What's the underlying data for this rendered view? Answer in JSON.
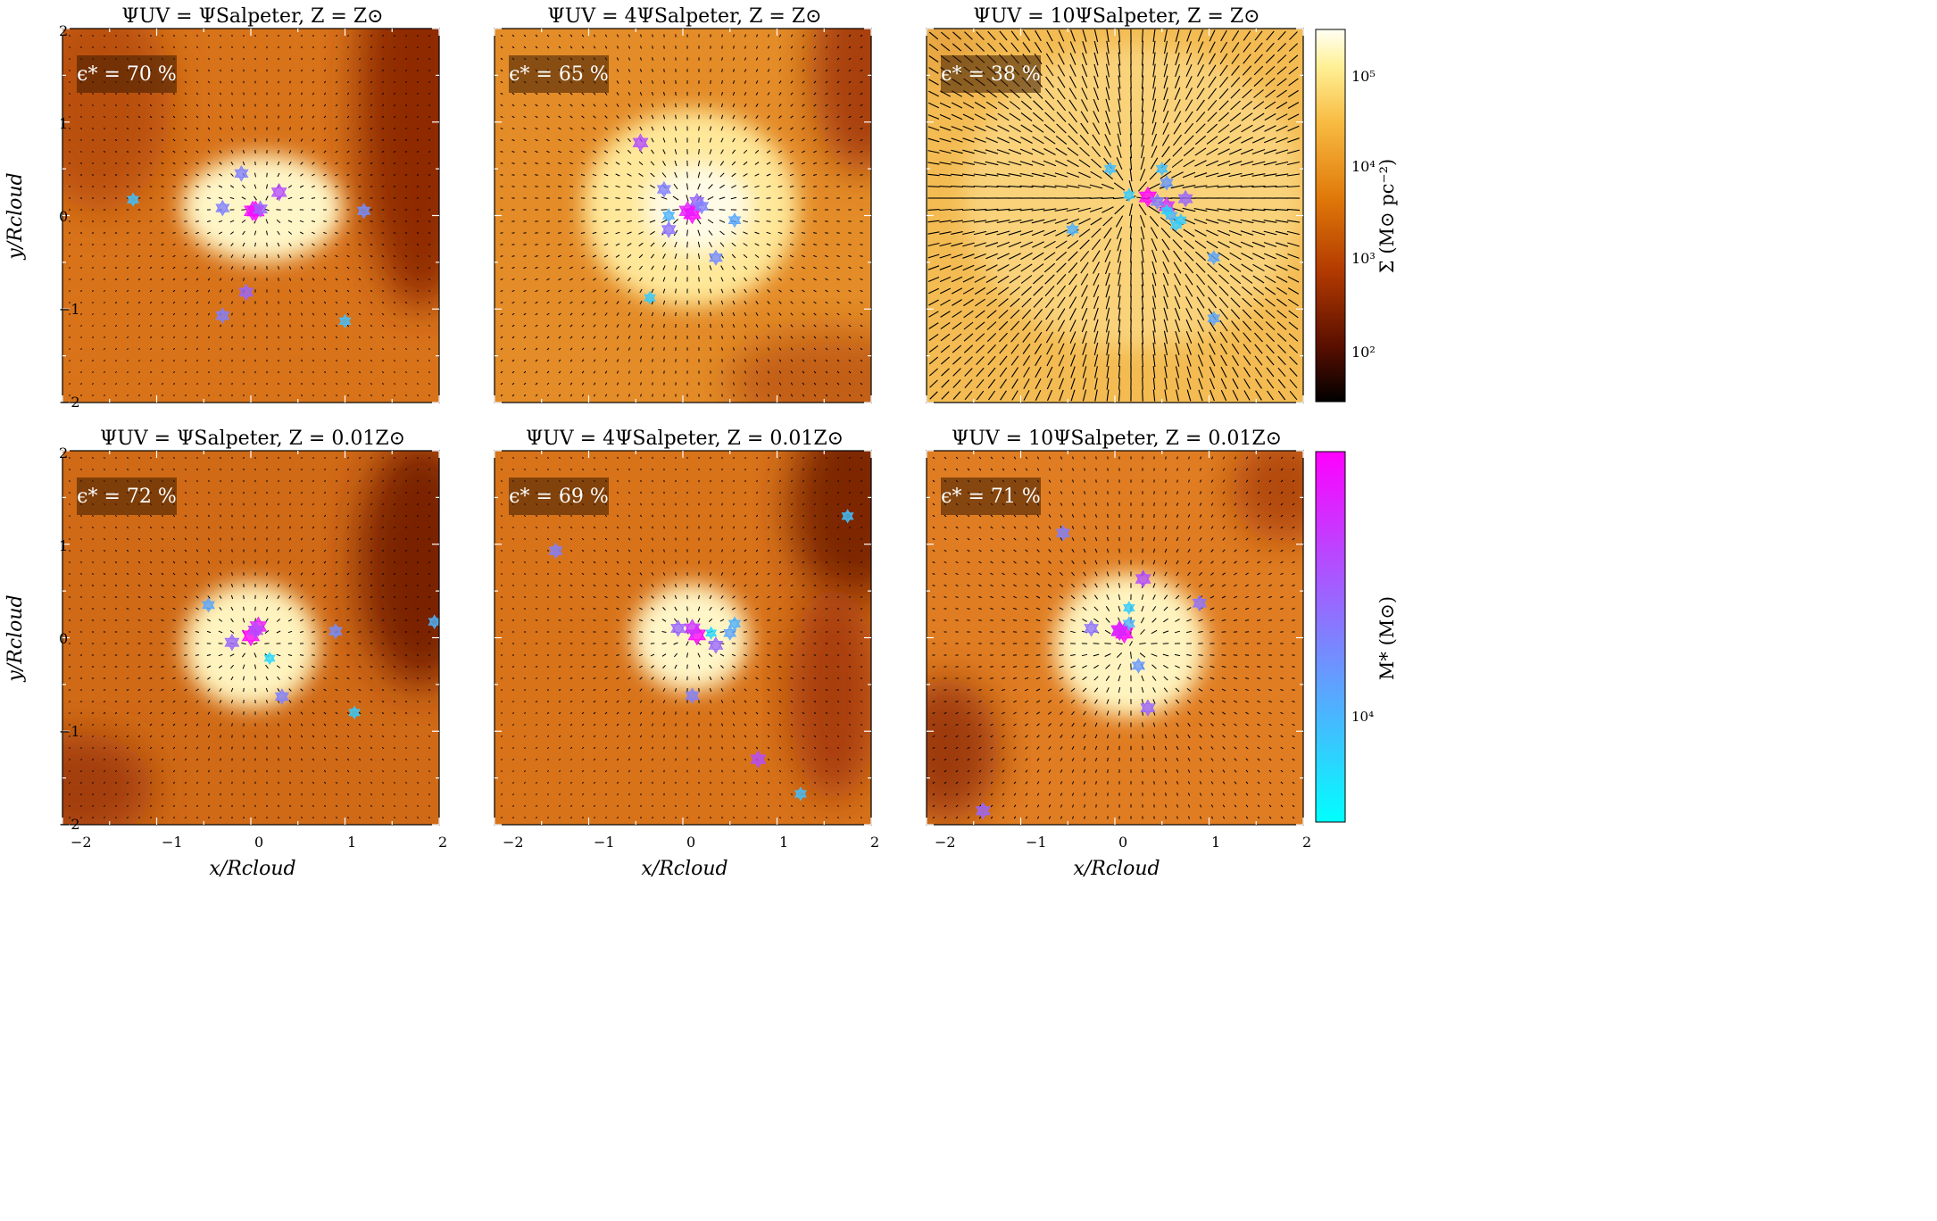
{
  "figure": {
    "panels": [
      {
        "title": "ΨUV = ΨSalpeter, Z = Z⊙",
        "efficiency": "ϵ* = 70 %"
      },
      {
        "title": "ΨUV = 4ΨSalpeter, Z = Z⊙",
        "efficiency": "ϵ* = 65 %"
      },
      {
        "title": "ΨUV = 10ΨSalpeter, Z = Z⊙",
        "efficiency": "ϵ* = 38 %"
      },
      {
        "title": "ΨUV = ΨSalpeter, Z = 0.01Z⊙",
        "efficiency": "ϵ* = 72 %"
      },
      {
        "title": "ΨUV = 4ΨSalpeter, Z = 0.01Z⊙",
        "efficiency": "ϵ* = 69 %"
      },
      {
        "title": "ΨUV = 10ΨSalpeter, Z = 0.01Z⊙",
        "efficiency": "ϵ* = 71 %"
      }
    ],
    "xlabel": "x/Rcloud",
    "ylabel": "y/Rcloud",
    "xticks": [
      "−2",
      "−1",
      "0",
      "1",
      "2"
    ],
    "yticks": [
      "2",
      "1",
      "0",
      "−1",
      "−2"
    ],
    "colorbar_density": {
      "label": "Σ (M⊙ pc⁻²)",
      "ticks": [
        "10⁵",
        "10⁴",
        "10³",
        "10²"
      ],
      "scale": "log"
    },
    "colorbar_mass": {
      "label": "M* (M⊙)",
      "ticks": [
        "10⁴"
      ],
      "scale": "log"
    },
    "colors": {
      "gas_low": "#000000",
      "gas_mid": "#e07a0a",
      "gas_high": "#fffff4",
      "star_low": "#00ffff",
      "star_high": "#ff00ff"
    }
  },
  "chart_data": [
    {
      "type": "scatter",
      "panel": 1,
      "title": "ΨUV = ΨSalpeter, Z = Z⊙",
      "efficiency_percent": 70,
      "xlim": [
        -2,
        2
      ],
      "ylim": [
        -2,
        2
      ],
      "x": [
        0.05,
        0.02,
        0.1,
        0.3,
        -0.1,
        -0.3,
        -1.25,
        1.2,
        -0.05,
        -0.3,
        1.0
      ],
      "y": [
        0.05,
        0.05,
        0.07,
        0.25,
        0.45,
        0.08,
        0.17,
        0.05,
        -0.82,
        -1.07,
        -1.13
      ],
      "mass_norm": [
        1.0,
        0.95,
        0.6,
        0.7,
        0.5,
        0.5,
        0.25,
        0.45,
        0.6,
        0.5,
        0.25
      ]
    },
    {
      "type": "scatter",
      "panel": 2,
      "title": "ΨUV = 4ΨSalpeter, Z = Z⊙",
      "efficiency_percent": 65,
      "xlim": [
        -2,
        2
      ],
      "ylim": [
        -2,
        2
      ],
      "x": [
        0.1,
        0.05,
        0.15,
        0.2,
        -0.15,
        -0.15,
        -0.45,
        0.55,
        0.35,
        -0.35,
        -0.2
      ],
      "y": [
        0.02,
        0.05,
        0.15,
        0.1,
        0.0,
        -0.15,
        0.78,
        -0.05,
        -0.45,
        -0.88,
        0.28
      ],
      "mass_norm": [
        1.0,
        0.9,
        0.6,
        0.5,
        0.3,
        0.55,
        0.7,
        0.35,
        0.45,
        0.2,
        0.5
      ]
    },
    {
      "type": "scatter",
      "panel": 3,
      "title": "ΨUV = 10ΨSalpeter, Z = Z⊙",
      "efficiency_percent": 38,
      "xlim": [
        -2,
        2
      ],
      "ylim": [
        -2,
        2
      ],
      "x": [
        0.35,
        0.55,
        0.6,
        0.5,
        0.55,
        0.15,
        -0.05,
        -0.45,
        0.65,
        0.75,
        1.05,
        1.05,
        0.55,
        0.45,
        0.7
      ],
      "y": [
        0.2,
        0.1,
        0.0,
        0.5,
        0.35,
        0.22,
        0.5,
        -0.15,
        -0.1,
        0.18,
        -0.45,
        -1.1,
        0.05,
        0.15,
        -0.05
      ],
      "mass_norm": [
        1.0,
        0.8,
        0.3,
        0.25,
        0.4,
        0.2,
        0.25,
        0.3,
        0.2,
        0.6,
        0.35,
        0.35,
        0.15,
        0.5,
        0.2
      ]
    },
    {
      "type": "scatter",
      "panel": 4,
      "title": "ΨUV = ΨSalpeter, Z = 0.01Z⊙",
      "efficiency_percent": 72,
      "xlim": [
        -2,
        2
      ],
      "ylim": [
        -2,
        2
      ],
      "x": [
        0.0,
        0.08,
        0.05,
        -0.2,
        -0.45,
        0.2,
        0.9,
        1.1,
        0.33,
        1.95
      ],
      "y": [
        0.02,
        0.12,
        0.08,
        -0.05,
        0.35,
        -0.22,
        0.07,
        -0.8,
        -0.63,
        0.17
      ],
      "mass_norm": [
        1.0,
        0.9,
        0.7,
        0.6,
        0.35,
        0.15,
        0.45,
        0.2,
        0.5,
        0.3
      ]
    },
    {
      "type": "scatter",
      "panel": 5,
      "title": "ΨUV = 4ΨSalpeter, Z = 0.01Z⊙",
      "efficiency_percent": 69,
      "xlim": [
        -2,
        2
      ],
      "ylim": [
        -2,
        2
      ],
      "x": [
        0.15,
        0.1,
        0.3,
        -0.05,
        0.35,
        0.55,
        0.5,
        0.1,
        -1.35,
        1.75,
        0.8,
        1.25
      ],
      "y": [
        0.03,
        0.1,
        0.05,
        0.1,
        -0.08,
        0.15,
        0.05,
        -0.62,
        0.93,
        1.3,
        -1.3,
        -1.67
      ],
      "mass_norm": [
        1.0,
        0.8,
        0.15,
        0.6,
        0.6,
        0.3,
        0.35,
        0.5,
        0.5,
        0.25,
        0.7,
        0.25
      ]
    },
    {
      "type": "scatter",
      "panel": 6,
      "title": "ΨUV = 10ΨSalpeter, Z = 0.01Z⊙",
      "efficiency_percent": 71,
      "xlim": [
        -2,
        2
      ],
      "ylim": [
        -2,
        2
      ],
      "x": [
        0.1,
        0.05,
        0.15,
        -0.25,
        0.3,
        0.9,
        0.15,
        0.25,
        0.35,
        -0.55,
        -1.4,
        0.05
      ],
      "y": [
        0.05,
        0.08,
        0.32,
        0.1,
        0.63,
        0.37,
        0.15,
        -0.3,
        -0.75,
        1.12,
        -1.85,
        0.07
      ],
      "mass_norm": [
        1.0,
        0.9,
        0.2,
        0.55,
        0.7,
        0.55,
        0.3,
        0.4,
        0.6,
        0.5,
        0.6,
        0.85
      ]
    }
  ]
}
